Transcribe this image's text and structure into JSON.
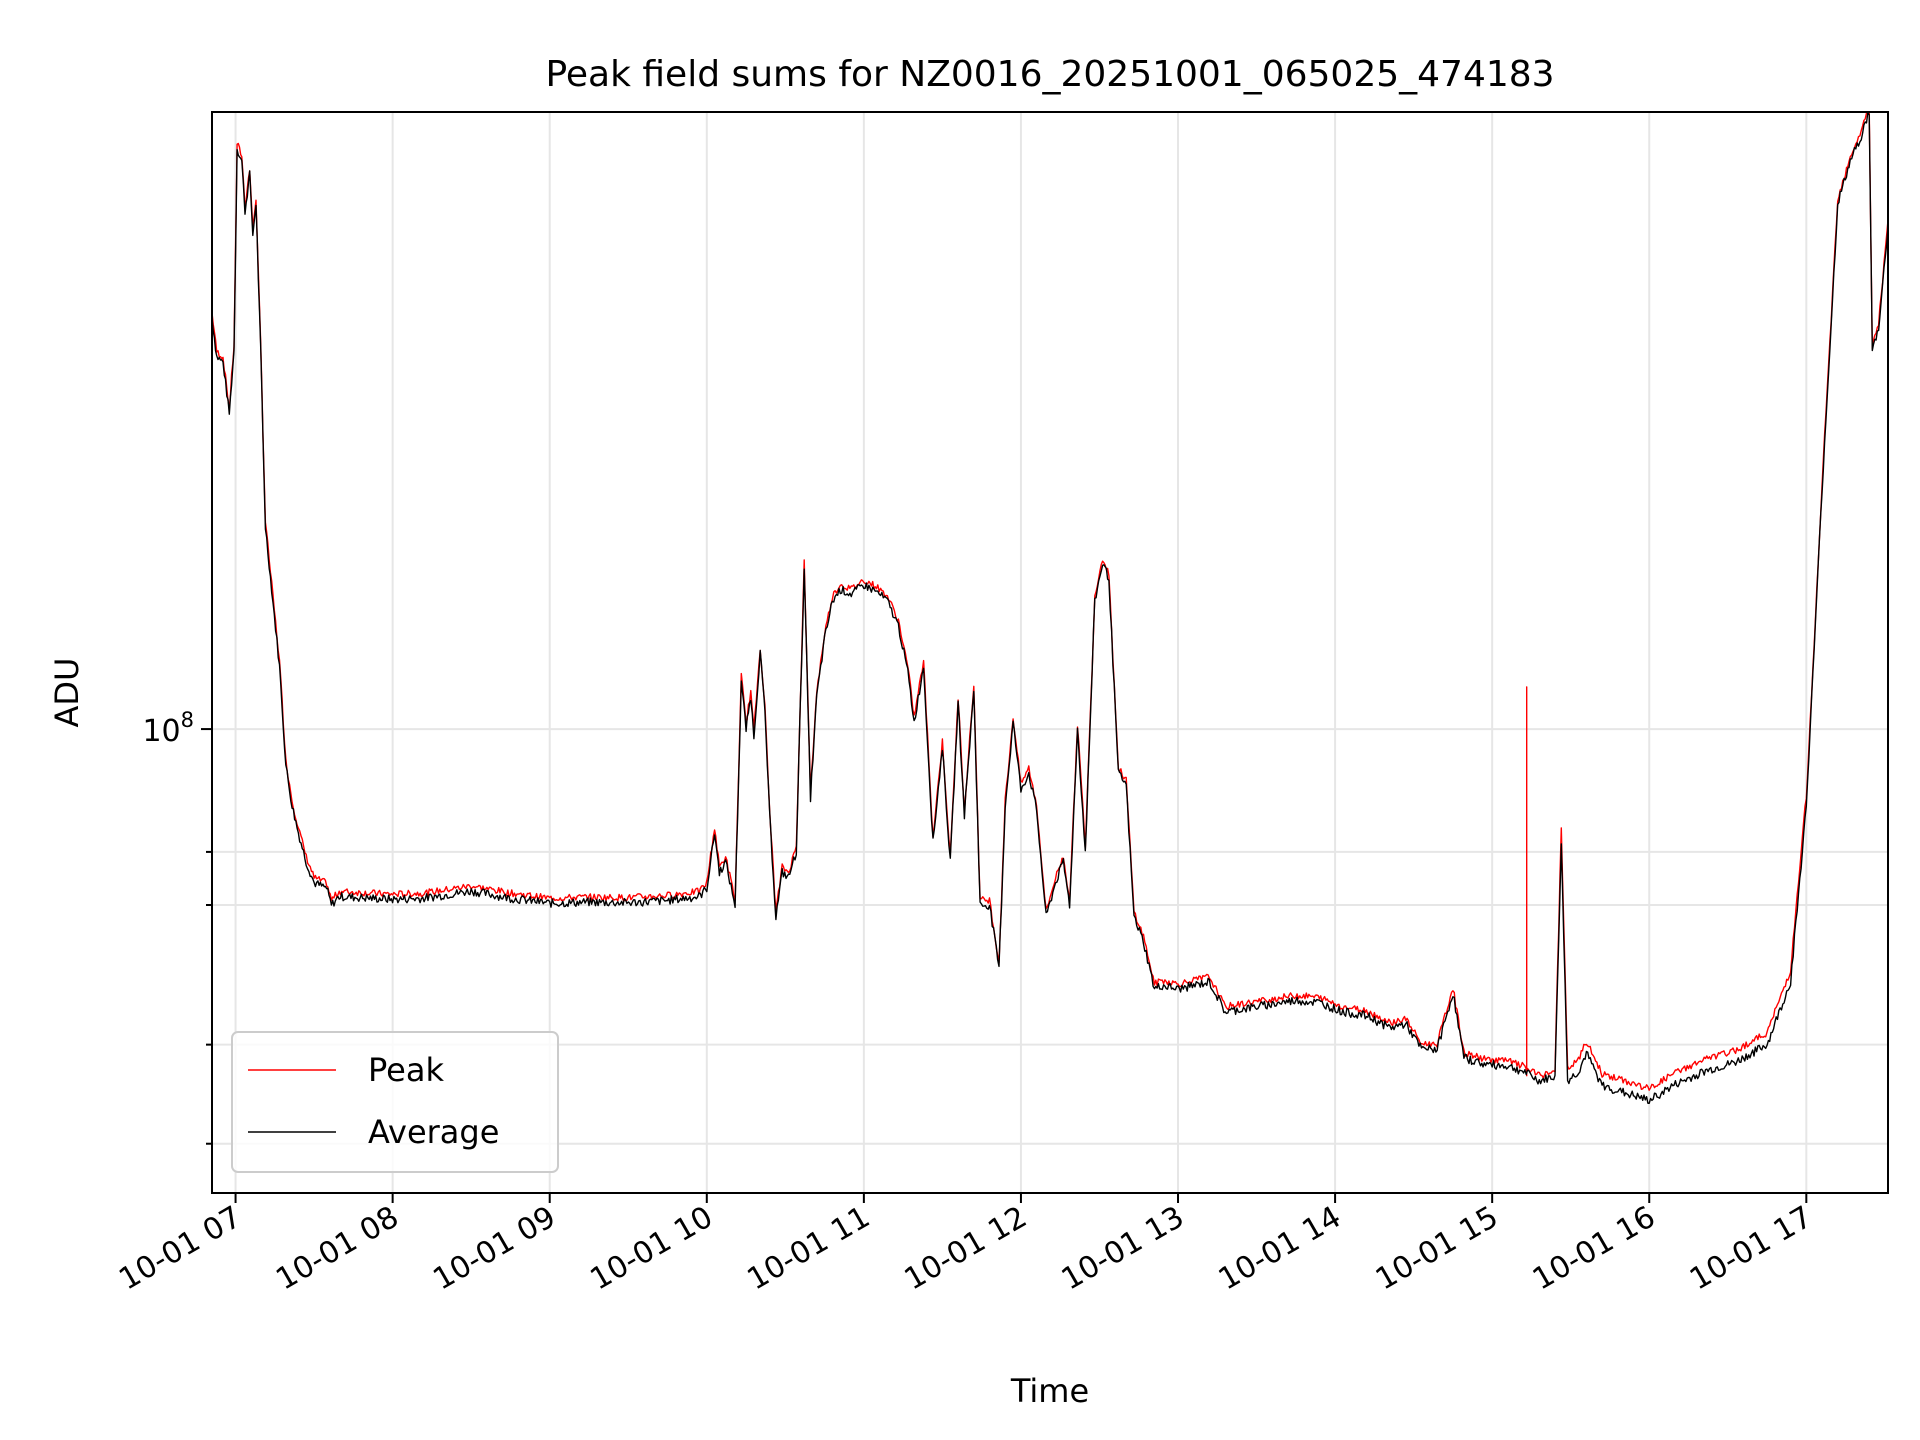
{
  "chart_data": {
    "type": "line",
    "title": "Peak field sums for NZ0016_20251001_065025_474183",
    "xlabel": "Time",
    "ylabel": "ADU",
    "y_scale": "log",
    "ylim": [
      26000000,
      600000000
    ],
    "xlim_hours": [
      6.85,
      17.52
    ],
    "grid": true,
    "legend_position": "lower-left",
    "y_tick_label": "10",
    "y_tick_exponent": "8",
    "y_major_tick_value": 100000000,
    "y_minor_tick_values": [
      30000000,
      40000000,
      60000000,
      70000000
    ],
    "x_ticks": [
      {
        "hour": 7,
        "label": "10-01 07"
      },
      {
        "hour": 8,
        "label": "10-01 08"
      },
      {
        "hour": 9,
        "label": "10-01 09"
      },
      {
        "hour": 10,
        "label": "10-01 10"
      },
      {
        "hour": 11,
        "label": "10-01 11"
      },
      {
        "hour": 12,
        "label": "10-01 12"
      },
      {
        "hour": 13,
        "label": "10-01 13"
      },
      {
        "hour": 14,
        "label": "10-01 14"
      },
      {
        "hour": 15,
        "label": "10-01 15"
      },
      {
        "hour": 16,
        "label": "10-01 16"
      },
      {
        "hour": 17,
        "label": "10-01 17"
      }
    ],
    "series": [
      {
        "name": "Peak",
        "color": "#ff0000"
      },
      {
        "name": "Average",
        "color": "#000000"
      }
    ],
    "average_points_hours_adu": [
      [
        6.85,
        330000000
      ],
      [
        6.88,
        295000000
      ],
      [
        6.92,
        290000000
      ],
      [
        6.96,
        250000000
      ],
      [
        6.99,
        300000000
      ],
      [
        7.01,
        540000000
      ],
      [
        7.04,
        520000000
      ],
      [
        7.06,
        450000000
      ],
      [
        7.09,
        500000000
      ],
      [
        7.11,
        420000000
      ],
      [
        7.13,
        460000000
      ],
      [
        7.16,
        300000000
      ],
      [
        7.19,
        180000000
      ],
      [
        7.23,
        150000000
      ],
      [
        7.28,
        120000000
      ],
      [
        7.32,
        90000000
      ],
      [
        7.36,
        80000000
      ],
      [
        7.4,
        74000000
      ],
      [
        7.45,
        68000000
      ],
      [
        7.5,
        64000000
      ],
      [
        7.58,
        63000000
      ],
      [
        7.61,
        60000000
      ],
      [
        7.66,
        61500000
      ],
      [
        8.0,
        61000000
      ],
      [
        8.2,
        61200000
      ],
      [
        8.5,
        62500000
      ],
      [
        8.75,
        61200000
      ],
      [
        9.0,
        60300000
      ],
      [
        9.25,
        60500000
      ],
      [
        9.5,
        60400000
      ],
      [
        9.75,
        60800000
      ],
      [
        9.95,
        61500000
      ],
      [
        10.0,
        63000000
      ],
      [
        10.05,
        74000000
      ],
      [
        10.08,
        66000000
      ],
      [
        10.12,
        68000000
      ],
      [
        10.18,
        60000000
      ],
      [
        10.22,
        115000000
      ],
      [
        10.25,
        100000000
      ],
      [
        10.28,
        110000000
      ],
      [
        10.3,
        98000000
      ],
      [
        10.34,
        125000000
      ],
      [
        10.37,
        105000000
      ],
      [
        10.4,
        78000000
      ],
      [
        10.44,
        58000000
      ],
      [
        10.48,
        66000000
      ],
      [
        10.52,
        65000000
      ],
      [
        10.57,
        70000000
      ],
      [
        10.62,
        160000000
      ],
      [
        10.66,
        82000000
      ],
      [
        10.7,
        110000000
      ],
      [
        10.75,
        130000000
      ],
      [
        10.8,
        145000000
      ],
      [
        10.85,
        150000000
      ],
      [
        10.92,
        148000000
      ],
      [
        11.0,
        152000000
      ],
      [
        11.08,
        149000000
      ],
      [
        11.15,
        145000000
      ],
      [
        11.22,
        135000000
      ],
      [
        11.28,
        118000000
      ],
      [
        11.32,
        102000000
      ],
      [
        11.38,
        120000000
      ],
      [
        11.44,
        72000000
      ],
      [
        11.5,
        95000000
      ],
      [
        11.55,
        68000000
      ],
      [
        11.6,
        108000000
      ],
      [
        11.64,
        78000000
      ],
      [
        11.7,
        112000000
      ],
      [
        11.74,
        60000000
      ],
      [
        11.8,
        60000000
      ],
      [
        11.86,
        50000000
      ],
      [
        11.9,
        80000000
      ],
      [
        11.95,
        102000000
      ],
      [
        12.0,
        84000000
      ],
      [
        12.05,
        88000000
      ],
      [
        12.1,
        79000000
      ],
      [
        12.16,
        58000000
      ],
      [
        12.22,
        64000000
      ],
      [
        12.27,
        68000000
      ],
      [
        12.31,
        60000000
      ],
      [
        12.36,
        100000000
      ],
      [
        12.41,
        70000000
      ],
      [
        12.47,
        145000000
      ],
      [
        12.52,
        162000000
      ],
      [
        12.56,
        155000000
      ],
      [
        12.62,
        88000000
      ],
      [
        12.67,
        85000000
      ],
      [
        12.72,
        58000000
      ],
      [
        12.78,
        54000000
      ],
      [
        12.85,
        47000000
      ],
      [
        12.9,
        47500000
      ],
      [
        13.0,
        47000000
      ],
      [
        13.1,
        47500000
      ],
      [
        13.2,
        48000000
      ],
      [
        13.3,
        44000000
      ],
      [
        13.45,
        44500000
      ],
      [
        13.6,
        45000000
      ],
      [
        13.75,
        45500000
      ],
      [
        13.9,
        45200000
      ],
      [
        14.05,
        44000000
      ],
      [
        14.2,
        43500000
      ],
      [
        14.35,
        42000000
      ],
      [
        14.45,
        42500000
      ],
      [
        14.55,
        39500000
      ],
      [
        14.65,
        39500000
      ],
      [
        14.75,
        46500000
      ],
      [
        14.82,
        38500000
      ],
      [
        14.95,
        37800000
      ],
      [
        15.1,
        37600000
      ],
      [
        15.2,
        37000000
      ],
      [
        15.3,
        36000000
      ],
      [
        15.4,
        36500000
      ],
      [
        15.44,
        72000000
      ],
      [
        15.48,
        36000000
      ],
      [
        15.55,
        37000000
      ],
      [
        15.6,
        39000000
      ],
      [
        15.7,
        35500000
      ],
      [
        15.9,
        34500000
      ],
      [
        16.0,
        34000000
      ],
      [
        16.15,
        35500000
      ],
      [
        16.35,
        37000000
      ],
      [
        16.55,
        38000000
      ],
      [
        16.75,
        40000000
      ],
      [
        16.9,
        48000000
      ],
      [
        17.0,
        80000000
      ],
      [
        17.1,
        200000000
      ],
      [
        17.2,
        460000000
      ],
      [
        17.28,
        520000000
      ],
      [
        17.35,
        560000000
      ],
      [
        17.4,
        600000000
      ],
      [
        17.42,
        300000000
      ],
      [
        17.46,
        320000000
      ],
      [
        17.52,
        430000000
      ]
    ],
    "peak_spike_hours_adu": [
      15.22,
      113000000
    ]
  }
}
